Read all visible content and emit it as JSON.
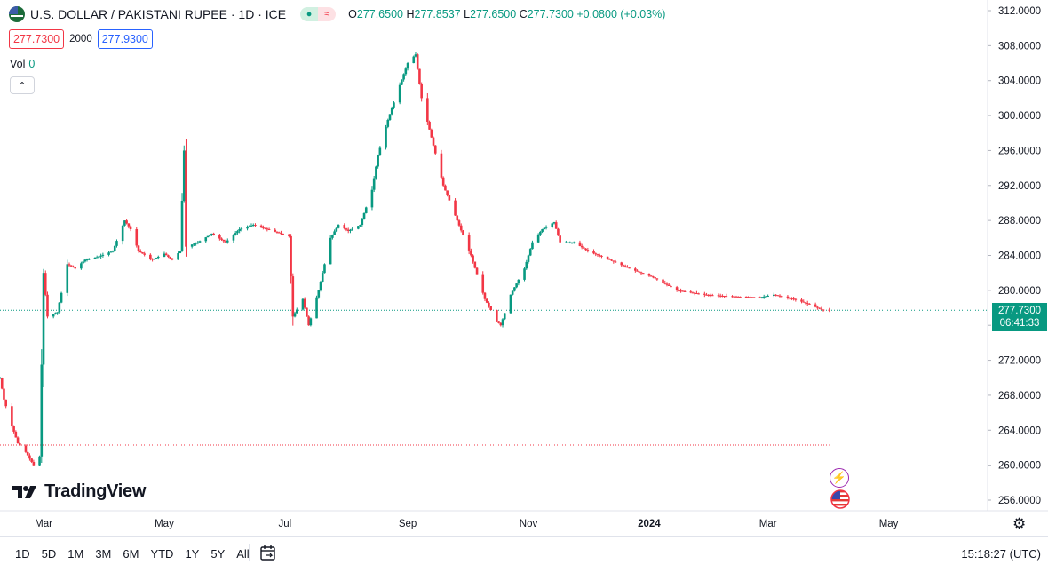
{
  "header": {
    "symbol_title": "U.S. DOLLAR / PAKISTANI RUPEE · 1D · ICE",
    "ohlc": {
      "open_label": "O",
      "open": "277.6500",
      "high_label": "H",
      "high": "277.8537",
      "low_label": "L",
      "low": "277.6500",
      "close_label": "C",
      "close": "277.7300",
      "change": "+0.0800 (+0.03%)"
    },
    "sell_price": "277.7300",
    "spread": "2000",
    "buy_price": "277.9300",
    "vol_label": "Vol",
    "vol_value": "0",
    "collapse_icon": "chevron-up-icon",
    "pill_icons": [
      "market-open-dot-icon",
      "delayed-data-icon"
    ]
  },
  "logo": {
    "text": "TradingView",
    "icon": "tradingview-logo-icon"
  },
  "current_price_label": {
    "price": "277.7300",
    "countdown": "06:41:33"
  },
  "toolbar": {
    "ranges": [
      "1D",
      "5D",
      "1M",
      "3M",
      "6M",
      "YTD",
      "1Y",
      "5Y",
      "All"
    ],
    "calendar_icon": "calendar-goto-icon",
    "clock": "15:18:27 (UTC)",
    "settings_icon": "gear-icon"
  },
  "colors": {
    "up": "#089981",
    "down": "#f23645",
    "grid": "#f0f3fa",
    "text": "#131722",
    "current_line": "#089981",
    "reference_line": "#f23645"
  },
  "chart_data": {
    "type": "candlestick",
    "title": "U.S. DOLLAR / PAKISTANI RUPEE · 1D · ICE",
    "xlabel": "",
    "ylabel": "",
    "ylim": [
      254.0,
      313.0
    ],
    "y_ticks": [
      "312.0000",
      "308.0000",
      "304.0000",
      "300.0000",
      "296.0000",
      "292.0000",
      "288.0000",
      "284.0000",
      "280.0000",
      "276.0000",
      "272.0000",
      "268.0000",
      "264.0000",
      "260.0000",
      "256.0000"
    ],
    "x_ticks": [
      {
        "label": "Mar",
        "date": "2023-03-01",
        "bold": false
      },
      {
        "label": "May",
        "date": "2023-05-01",
        "bold": false
      },
      {
        "label": "Jul",
        "date": "2023-07-01",
        "bold": false
      },
      {
        "label": "Sep",
        "date": "2023-09-01",
        "bold": false
      },
      {
        "label": "Nov",
        "date": "2023-11-01",
        "bold": false
      },
      {
        "label": "2024",
        "date": "2024-01-01",
        "bold": true
      },
      {
        "label": "Mar",
        "date": "2024-03-01",
        "bold": false
      },
      {
        "label": "May",
        "date": "2024-05-01",
        "bold": false
      }
    ],
    "xlim": [
      "2023-02-07",
      "2024-06-20"
    ],
    "grid": true,
    "current_price": 277.73,
    "reference_price": 262.3,
    "close_path": [
      [
        "2023-02-07",
        270.0
      ],
      [
        "2023-02-09",
        267.5
      ],
      [
        "2023-02-13",
        264.5
      ],
      [
        "2023-02-16",
        262.5
      ],
      [
        "2023-02-20",
        261.5
      ],
      [
        "2023-02-24",
        260.0
      ],
      [
        "2023-02-27",
        261.0
      ],
      [
        "2023-03-01",
        282.0
      ],
      [
        "2023-03-03",
        277.0
      ],
      [
        "2023-03-08",
        277.5
      ],
      [
        "2023-03-13",
        283.0
      ],
      [
        "2023-03-17",
        282.5
      ],
      [
        "2023-03-22",
        283.5
      ],
      [
        "2023-03-28",
        283.8
      ],
      [
        "2023-04-05",
        284.5
      ],
      [
        "2023-04-11",
        288.0
      ],
      [
        "2023-04-14",
        287.0
      ],
      [
        "2023-04-18",
        284.5
      ],
      [
        "2023-04-25",
        283.5
      ],
      [
        "2023-05-01",
        284.2
      ],
      [
        "2023-05-05",
        283.5
      ],
      [
        "2023-05-09",
        284.5
      ],
      [
        "2023-05-11",
        296.0
      ],
      [
        "2023-05-12",
        285.0
      ],
      [
        "2023-05-18",
        285.5
      ],
      [
        "2023-05-25",
        286.5
      ],
      [
        "2023-06-01",
        285.5
      ],
      [
        "2023-06-08",
        287.0
      ],
      [
        "2023-06-15",
        287.5
      ],
      [
        "2023-06-22",
        287.0
      ],
      [
        "2023-06-29",
        286.5
      ],
      [
        "2023-07-03",
        286.2
      ],
      [
        "2023-07-05",
        277.0
      ],
      [
        "2023-07-10",
        279.0
      ],
      [
        "2023-07-13",
        276.0
      ],
      [
        "2023-07-18",
        280.0
      ],
      [
        "2023-07-24",
        286.0
      ],
      [
        "2023-07-28",
        287.5
      ],
      [
        "2023-08-02",
        286.8
      ],
      [
        "2023-08-08",
        287.5
      ],
      [
        "2023-08-11",
        289.5
      ],
      [
        "2023-08-14",
        291.5
      ],
      [
        "2023-08-17",
        295.5
      ],
      [
        "2023-08-22",
        299.5
      ],
      [
        "2023-08-28",
        303.5
      ],
      [
        "2023-09-01",
        306.0
      ],
      [
        "2023-09-05",
        307.0
      ],
      [
        "2023-09-08",
        302.0
      ],
      [
        "2023-09-13",
        297.5
      ],
      [
        "2023-09-19",
        292.0
      ],
      [
        "2023-09-26",
        288.0
      ],
      [
        "2023-10-03",
        284.0
      ],
      [
        "2023-10-10",
        279.0
      ],
      [
        "2023-10-16",
        276.5
      ],
      [
        "2023-10-18",
        276.0
      ],
      [
        "2023-10-23",
        279.5
      ],
      [
        "2023-10-30",
        282.5
      ],
      [
        "2023-11-03",
        285.5
      ],
      [
        "2023-11-08",
        287.0
      ],
      [
        "2023-11-14",
        287.8
      ],
      [
        "2023-11-17",
        285.5
      ],
      [
        "2023-11-24",
        285.5
      ],
      [
        "2023-12-01",
        284.5
      ],
      [
        "2023-12-12",
        283.5
      ],
      [
        "2023-12-22",
        282.5
      ],
      [
        "2024-01-03",
        281.5
      ],
      [
        "2024-01-15",
        280.0
      ],
      [
        "2024-01-29",
        279.5
      ],
      [
        "2024-02-12",
        279.3
      ],
      [
        "2024-02-26",
        279.2
      ],
      [
        "2024-03-04",
        279.5
      ],
      [
        "2024-03-14",
        279.0
      ],
      [
        "2024-03-22",
        278.4
      ],
      [
        "2024-03-28",
        277.8
      ],
      [
        "2024-04-01",
        277.73
      ]
    ]
  }
}
